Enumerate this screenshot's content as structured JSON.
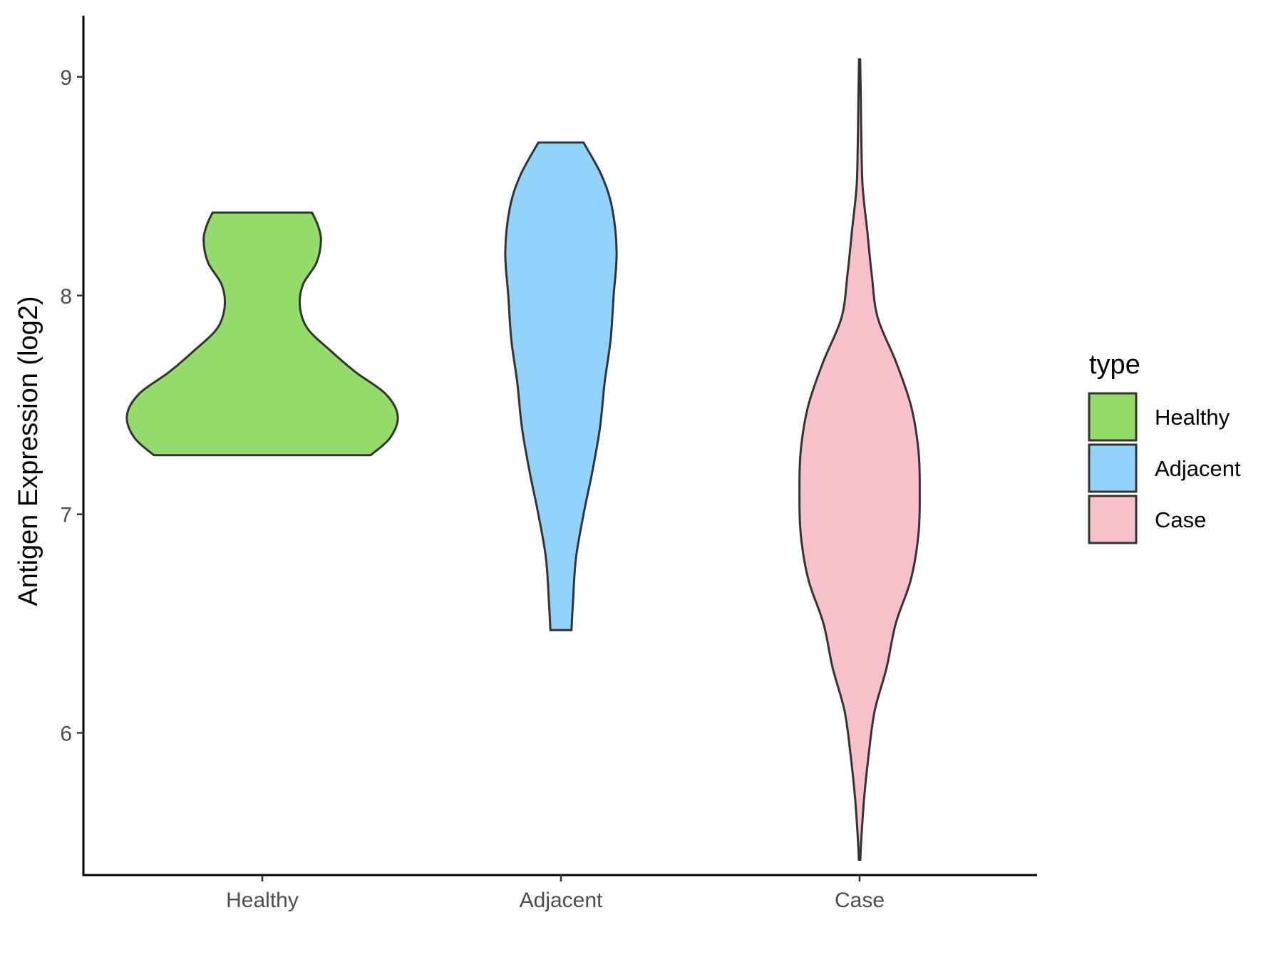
{
  "chart_data": {
    "type": "violin",
    "title": "",
    "xlabel": "",
    "ylabel": "Antigen Expression (log2)",
    "ylim": [
      5.35,
      9.28
    ],
    "yticks": [
      6,
      7,
      8,
      9
    ],
    "grid": false,
    "legend": {
      "title": "type",
      "placement": "right",
      "entries": [
        "Healthy",
        "Adjacent",
        "Case"
      ]
    },
    "categories": [
      "Healthy",
      "Adjacent",
      "Case"
    ],
    "series": [
      {
        "name": "Healthy",
        "color": "#93dc6a",
        "min": 7.27,
        "max": 8.38,
        "density": [
          [
            7.27,
            0.72
          ],
          [
            7.35,
            0.85
          ],
          [
            7.45,
            0.9
          ],
          [
            7.55,
            0.82
          ],
          [
            7.65,
            0.62
          ],
          [
            7.75,
            0.45
          ],
          [
            7.85,
            0.3
          ],
          [
            7.95,
            0.25
          ],
          [
            8.05,
            0.27
          ],
          [
            8.15,
            0.36
          ],
          [
            8.25,
            0.39
          ],
          [
            8.32,
            0.37
          ],
          [
            8.38,
            0.33
          ]
        ]
      },
      {
        "name": "Adjacent",
        "color": "#92d2fd",
        "min": 6.47,
        "max": 8.7,
        "density": [
          [
            6.47,
            0.07
          ],
          [
            6.6,
            0.08
          ],
          [
            6.8,
            0.1
          ],
          [
            7.0,
            0.15
          ],
          [
            7.2,
            0.21
          ],
          [
            7.4,
            0.26
          ],
          [
            7.6,
            0.29
          ],
          [
            7.8,
            0.33
          ],
          [
            8.0,
            0.35
          ],
          [
            8.2,
            0.37
          ],
          [
            8.4,
            0.34
          ],
          [
            8.55,
            0.27
          ],
          [
            8.7,
            0.15
          ]
        ]
      },
      {
        "name": "Case",
        "color": "#f8c0cb",
        "min": 5.42,
        "max": 9.08,
        "density": [
          [
            5.42,
            0.005
          ],
          [
            5.5,
            0.01
          ],
          [
            5.7,
            0.03
          ],
          [
            5.9,
            0.06
          ],
          [
            6.1,
            0.1
          ],
          [
            6.3,
            0.18
          ],
          [
            6.5,
            0.24
          ],
          [
            6.7,
            0.34
          ],
          [
            6.9,
            0.39
          ],
          [
            7.1,
            0.4
          ],
          [
            7.3,
            0.39
          ],
          [
            7.5,
            0.34
          ],
          [
            7.7,
            0.24
          ],
          [
            7.9,
            0.12
          ],
          [
            8.1,
            0.08
          ],
          [
            8.3,
            0.05
          ],
          [
            8.5,
            0.02
          ],
          [
            8.7,
            0.012
          ],
          [
            8.9,
            0.008
          ],
          [
            9.08,
            0.004
          ]
        ]
      }
    ]
  }
}
